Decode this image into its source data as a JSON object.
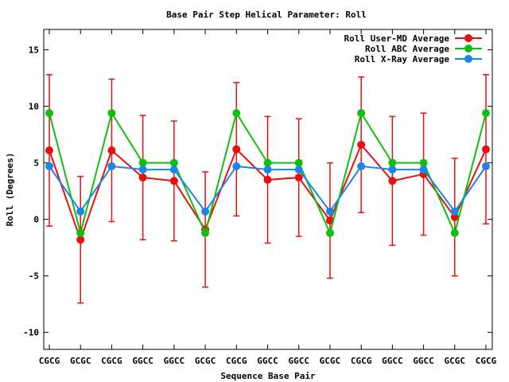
{
  "chart_data": {
    "type": "line",
    "title": "Base Pair Step Helical Parameter: Roll",
    "xlabel": "Sequence Base Pair",
    "ylabel": "Roll (Degrees)",
    "categories": [
      "CGCG",
      "GCGC",
      "CGCG",
      "GGCC",
      "GGCC",
      "GCGC",
      "CGCG",
      "GGCC",
      "GGCC",
      "GCGC",
      "CGCG",
      "GGCC",
      "GGCC",
      "GCGC",
      "CGCG"
    ],
    "ylim": [
      -11.5,
      16.8
    ],
    "yticks": [
      -10,
      -5,
      0,
      5,
      10,
      15
    ],
    "grid": false,
    "legend_position": "top-right",
    "series": [
      {
        "name": "Roll User-MD Average",
        "color": "#e8100f",
        "values": [
          6.1,
          -1.8,
          6.1,
          3.7,
          3.4,
          -0.9,
          6.2,
          3.5,
          3.7,
          -0.1,
          6.6,
          3.4,
          4.0,
          0.2,
          6.2
        ],
        "error": [
          6.7,
          5.6,
          6.3,
          5.5,
          5.3,
          5.1,
          5.9,
          5.6,
          5.2,
          5.1,
          6.0,
          5.7,
          5.4,
          5.2,
          6.6
        ]
      },
      {
        "name": "Roll ABC Average",
        "color": "#0fbf0f",
        "values": [
          9.4,
          -1.2,
          9.4,
          5.0,
          5.0,
          -1.2,
          9.4,
          5.0,
          5.0,
          -1.2,
          9.4,
          5.0,
          5.0,
          -1.2,
          9.4
        ]
      },
      {
        "name": "Roll X-Ray Average",
        "color": "#1a86e8",
        "values": [
          4.7,
          0.7,
          4.7,
          4.4,
          4.4,
          0.7,
          4.7,
          4.4,
          4.4,
          0.7,
          4.7,
          4.4,
          4.4,
          0.7,
          4.7
        ]
      }
    ]
  }
}
